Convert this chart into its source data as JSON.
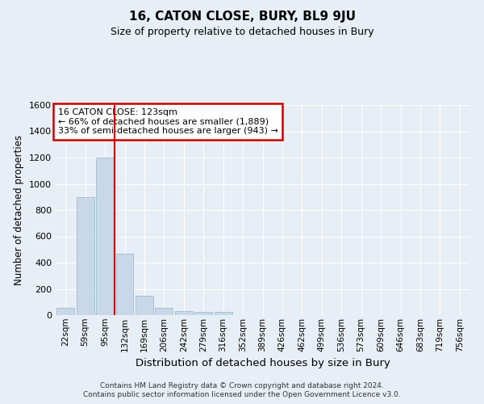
{
  "title": "16, CATON CLOSE, BURY, BL9 9JU",
  "subtitle": "Size of property relative to detached houses in Bury",
  "xlabel": "Distribution of detached houses by size in Bury",
  "ylabel": "Number of detached properties",
  "footer_line1": "Contains HM Land Registry data © Crown copyright and database right 2024.",
  "footer_line2": "Contains public sector information licensed under the Open Government Licence v3.0.",
  "property_label": "16 CATON CLOSE: 123sqm",
  "annotation_line1": "← 66% of detached houses are smaller (1,889)",
  "annotation_line2": "33% of semi-detached houses are larger (943) →",
  "bar_color": "#c8d8e8",
  "bar_edge_color": "#a0bcce",
  "vline_color": "#cc0000",
  "annotation_box_edgecolor": "#cc0000",
  "bg_color": "#e8eef5",
  "grid_color": "#ffffff",
  "categories": [
    "22sqm",
    "59sqm",
    "95sqm",
    "132sqm",
    "169sqm",
    "206sqm",
    "242sqm",
    "279sqm",
    "316sqm",
    "352sqm",
    "389sqm",
    "426sqm",
    "462sqm",
    "499sqm",
    "536sqm",
    "573sqm",
    "609sqm",
    "646sqm",
    "683sqm",
    "719sqm",
    "756sqm"
  ],
  "values": [
    55,
    900,
    1200,
    470,
    150,
    55,
    28,
    22,
    22,
    0,
    0,
    0,
    0,
    0,
    0,
    0,
    0,
    0,
    0,
    0,
    0
  ],
  "ylim": [
    0,
    1600
  ],
  "yticks": [
    0,
    200,
    400,
    600,
    800,
    1000,
    1200,
    1400,
    1600
  ],
  "vline_x": 2.5,
  "figsize": [
    6.0,
    5.0
  ],
  "dpi": 100
}
